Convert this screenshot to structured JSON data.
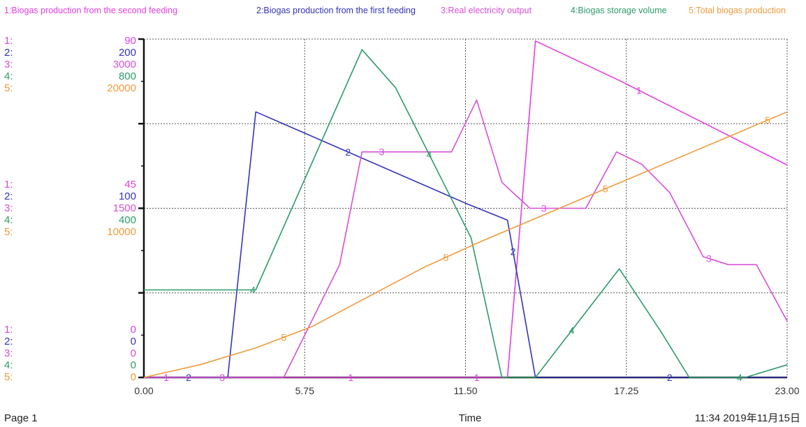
{
  "colors": {
    "s1": "#e040e0",
    "s2": "#3333bb",
    "s3": "#d84fd8",
    "s4": "#2e9a6a",
    "s5": "#ee9a3a",
    "grid": "#555555",
    "frame": "#111111"
  },
  "legend": [
    "1:Biogas production from the second feeding",
    "2:Biogas production from the first feeding",
    "3:Real electricity output",
    "4:Biogas storage volume",
    "5:Total biogas production"
  ],
  "scales": {
    "series_ids": [
      "1:",
      "2:",
      "3:",
      "4:",
      "5:"
    ],
    "top": [
      "90",
      "200",
      "3000",
      "800",
      "20000"
    ],
    "mid": [
      "45",
      "100",
      "1500",
      "400",
      "10000"
    ],
    "bottom": [
      "0",
      "0",
      "0",
      "0",
      "0"
    ]
  },
  "footer": {
    "page": "Page 1",
    "xlabel": "Time",
    "timestamp": "11:34   2019年11月15日"
  },
  "chart_data": {
    "type": "line",
    "xlabel": "Time",
    "x_tick_labels": [
      "0.00",
      "5.75",
      "11.50",
      "17.25",
      "23.00"
    ],
    "xlim": [
      0,
      23
    ],
    "grid": true,
    "legend_position": "top",
    "series": [
      {
        "name": "Biogas production from the second feeding",
        "ylim": [
          0,
          90
        ],
        "points": [
          [
            0,
            0
          ],
          [
            13.0,
            0
          ],
          [
            14.0,
            89.5
          ],
          [
            17.0,
            79
          ],
          [
            23.0,
            56.5
          ]
        ]
      },
      {
        "name": "Biogas production from the first feeding",
        "ylim": [
          0,
          200
        ],
        "points": [
          [
            0,
            0
          ],
          [
            3.0,
            0
          ],
          [
            4.0,
            157
          ],
          [
            11.5,
            103
          ],
          [
            13.0,
            93
          ],
          [
            14.0,
            0
          ],
          [
            23.0,
            0
          ]
        ]
      },
      {
        "name": "Real electricity output",
        "ylim": [
          0,
          3000
        ],
        "points": [
          [
            0,
            0
          ],
          [
            5.0,
            0
          ],
          [
            7.0,
            1000
          ],
          [
            7.8,
            2000
          ],
          [
            11.0,
            2000
          ],
          [
            11.9,
            2460
          ],
          [
            12.8,
            1730
          ],
          [
            13.8,
            1500
          ],
          [
            15.8,
            1500
          ],
          [
            16.9,
            2000
          ],
          [
            17.8,
            1890
          ],
          [
            18.8,
            1640
          ],
          [
            20.0,
            1070
          ],
          [
            20.9,
            1000
          ],
          [
            21.9,
            1000
          ],
          [
            23.0,
            500
          ]
        ]
      },
      {
        "name": "Biogas storage volume",
        "ylim": [
          0,
          800
        ],
        "points": [
          [
            0,
            207
          ],
          [
            4.0,
            207
          ],
          [
            7.8,
            775
          ],
          [
            9.0,
            685
          ],
          [
            11.7,
            330
          ],
          [
            12.8,
            0
          ],
          [
            14.0,
            0
          ],
          [
            17.0,
            257
          ],
          [
            18.5,
            107
          ],
          [
            19.5,
            0
          ],
          [
            21.5,
            0
          ],
          [
            23.0,
            30
          ]
        ]
      },
      {
        "name": "Total biogas production",
        "ylim": [
          0,
          20000
        ],
        "points": [
          [
            0,
            0
          ],
          [
            2.0,
            750
          ],
          [
            4.0,
            1750
          ],
          [
            6.0,
            3000
          ],
          [
            8.0,
            4750
          ],
          [
            10.0,
            6500
          ],
          [
            12.0,
            8000
          ],
          [
            14.0,
            9400
          ],
          [
            16.0,
            10800
          ],
          [
            18.0,
            12200
          ],
          [
            20.0,
            13600
          ],
          [
            23.0,
            15700
          ]
        ]
      }
    ]
  }
}
